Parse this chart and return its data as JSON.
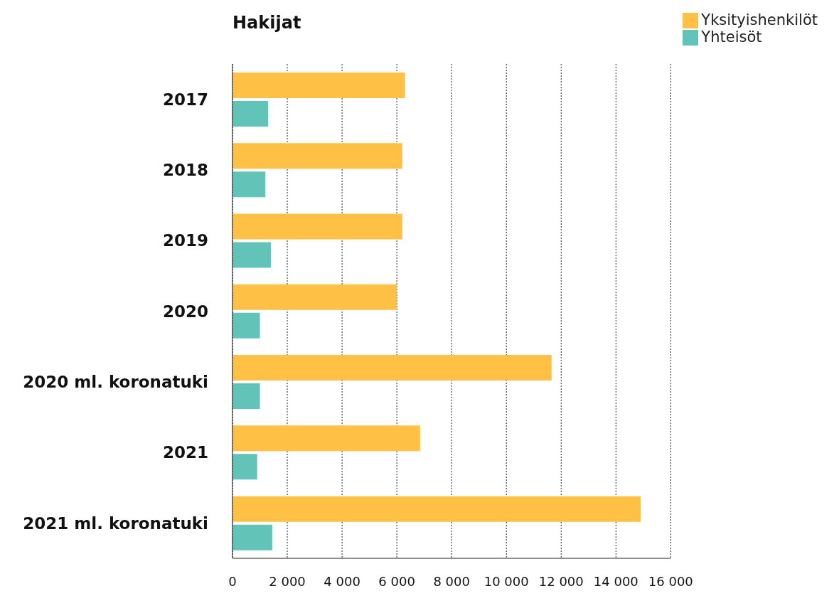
{
  "chart_data": {
    "type": "bar",
    "orientation": "horizontal",
    "title": "Hakijat",
    "categories": [
      "2017",
      "2018",
      "2019",
      "2020",
      "2020 ml. koronatuki",
      "2021",
      "2021 ml. koronatuki"
    ],
    "series": [
      {
        "name": "Yksityishenkilöt",
        "color": "#ffc046",
        "values": [
          6300,
          6200,
          6200,
          6000,
          11650,
          6850,
          14900
        ]
      },
      {
        "name": "Yhteisöt",
        "color": "#62c3b9",
        "values": [
          1300,
          1200,
          1400,
          1000,
          1000,
          900,
          1450
        ]
      }
    ],
    "xlim": [
      0,
      16000
    ],
    "xticks": [
      0,
      {
        "value": 2000,
        "label": "2 000"
      },
      {
        "value": 4000,
        "label": "4 000"
      },
      {
        "value": 6000,
        "label": "6 000"
      },
      {
        "value": 8000,
        "label": "8 000"
      },
      {
        "value": 10000,
        "label": "10 000"
      },
      {
        "value": 12000,
        "label": "12 000"
      },
      {
        "value": 14000,
        "label": "14 000"
      },
      {
        "value": 16000,
        "label": "16 000"
      }
    ],
    "grid": "x",
    "legend": "top right"
  }
}
